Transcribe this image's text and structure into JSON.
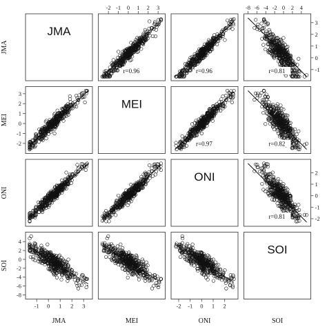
{
  "chart_data": {
    "type": "scatter-matrix",
    "variables": [
      "JMA",
      "MEI",
      "ONI",
      "SOI"
    ],
    "axis_labels": [
      "JMA",
      "MEI",
      "ONI",
      "SOI"
    ],
    "ranges": {
      "JMA": [
        -1.6,
        3.4
      ],
      "MEI": [
        -2.6,
        3.3
      ],
      "ONI": [
        -2.3,
        2.8
      ],
      "SOI": [
        -8.0,
        5.2
      ]
    },
    "ticks": {
      "JMA": [
        "-1",
        "0",
        "1",
        "2",
        "3"
      ],
      "MEI": [
        "-2",
        "-1",
        "0",
        "1",
        "2",
        "3"
      ],
      "ONI": [
        "-2",
        "-1",
        "0",
        "1",
        "2"
      ],
      "SOI": [
        "-8",
        "-6",
        "-4",
        "-2",
        "0",
        "2",
        "4"
      ]
    },
    "correlations": [
      {
        "a": "JMA",
        "b": "MEI",
        "label": "r=0.96"
      },
      {
        "a": "JMA",
        "b": "ONI",
        "label": "r=0.96"
      },
      {
        "a": "JMA",
        "b": "SOI",
        "label": "r=0.81"
      },
      {
        "a": "MEI",
        "b": "ONI",
        "label": "r=0.97"
      },
      {
        "a": "MEI",
        "b": "SOI",
        "label": "r=0.82"
      },
      {
        "a": "ONI",
        "b": "SOI",
        "label": "r=0.81"
      }
    ],
    "signs": {
      "JMA|MEI": 1,
      "JMA|ONI": 1,
      "JMA|SOI": -1,
      "MEI|ONI": 1,
      "MEI|SOI": -1,
      "ONI|SOI": -1
    },
    "n_points": 420,
    "marker": "open-circle",
    "fit_lines": [
      "solid",
      "dashed"
    ]
  }
}
